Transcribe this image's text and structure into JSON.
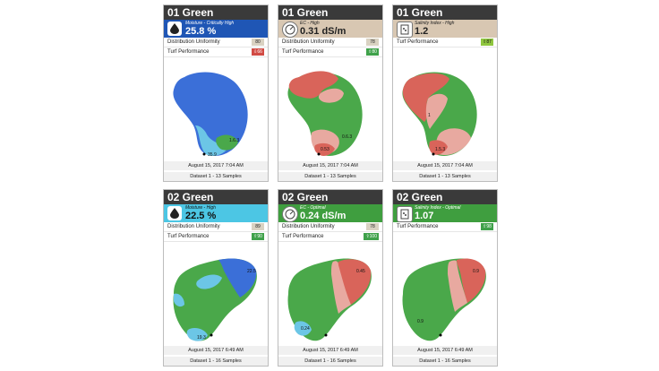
{
  "cards": [
    {
      "title": "01 Green",
      "metric": {
        "status": "Moisture - Critically High",
        "value": "25.8 %",
        "icon": "water-drop-icon",
        "color": "#1f56b5",
        "text_color": "#ffffff"
      },
      "distribution_uniformity": {
        "label": "Distribution Uniformity",
        "value": "80",
        "color": "#d9d2c2"
      },
      "turf_performance": {
        "label": "Turf Performance",
        "value": "66",
        "color": "#d14b44"
      },
      "map_labels": [
        "1",
        "1.6.3",
        "35.9"
      ],
      "date": "August 15, 2017 7:04 AM",
      "dataset": "Dataset 1 - 13 Samples"
    },
    {
      "title": "01 Green",
      "metric": {
        "status": "EC - High",
        "value": "0.31 dS/m",
        "icon": "ec-gauge-icon",
        "color": "#d8c7b2",
        "text_color": "#222222"
      },
      "distribution_uniformity": {
        "label": "Distribution Uniformity",
        "value": "78",
        "color": "#d9d2c2"
      },
      "turf_performance": {
        "label": "Turf Performance",
        "value": "80",
        "color": "#3fa14a"
      },
      "map_labels": [
        "0.6.3",
        "0.53"
      ],
      "date": "August 15, 2017 7:04 AM",
      "dataset": "Dataset 1 - 13 Samples"
    },
    {
      "title": "01 Green",
      "metric": {
        "status": "Salinity Index - High",
        "value": "1.2",
        "icon": "salinity-icon",
        "color": "#d8c7b2",
        "text_color": "#222222"
      },
      "distribution_uniformity": null,
      "turf_performance": {
        "label": "Turf Performance",
        "value": "87",
        "color": "#8fc63f"
      },
      "map_labels": [
        "1",
        "1.5.3"
      ],
      "date": "August 15, 2017 7:04 AM",
      "dataset": "Dataset 1 - 13 Samples"
    },
    {
      "title": "02 Green",
      "metric": {
        "status": "Moisture - High",
        "value": "22.5 %",
        "icon": "water-drop-icon",
        "color": "#4cc6e4",
        "text_color": "#111111"
      },
      "distribution_uniformity": {
        "label": "Distribution Uniformity",
        "value": "89",
        "color": "#d9d2c2"
      },
      "turf_performance": {
        "label": "Turf Performance",
        "value": "90",
        "color": "#3fa14a"
      },
      "map_labels": [
        "22.5",
        "19.3"
      ],
      "date": "August 15, 2017 6:49 AM",
      "dataset": "Dataset 1 - 16 Samples"
    },
    {
      "title": "02 Green",
      "metric": {
        "status": "EC - Optimal",
        "value": "0.24 dS/m",
        "icon": "ec-gauge-icon",
        "color": "#3f9e3f",
        "text_color": "#ffffff"
      },
      "distribution_uniformity": {
        "label": "Distribution Uniformity",
        "value": "78",
        "color": "#d9d2c2"
      },
      "turf_performance": {
        "label": "Turf Performance",
        "value": "100",
        "color": "#3fa14a"
      },
      "map_labels": [
        "0.45",
        "0.24"
      ],
      "date": "August 15, 2017 6:49 AM",
      "dataset": "Dataset 1 - 16 Samples"
    },
    {
      "title": "02 Green",
      "metric": {
        "status": "Salinity Index - Optimal",
        "value": "1.07",
        "icon": "salinity-icon",
        "color": "#3f9e3f",
        "text_color": "#ffffff"
      },
      "distribution_uniformity": null,
      "turf_performance": {
        "label": "Turf Performance",
        "value": "98",
        "color": "#3fa14a"
      },
      "map_labels": [
        "0.9",
        "0.9"
      ],
      "date": "August 15, 2017 6:49 AM",
      "dataset": "Dataset 1 - 16 Samples"
    }
  ]
}
